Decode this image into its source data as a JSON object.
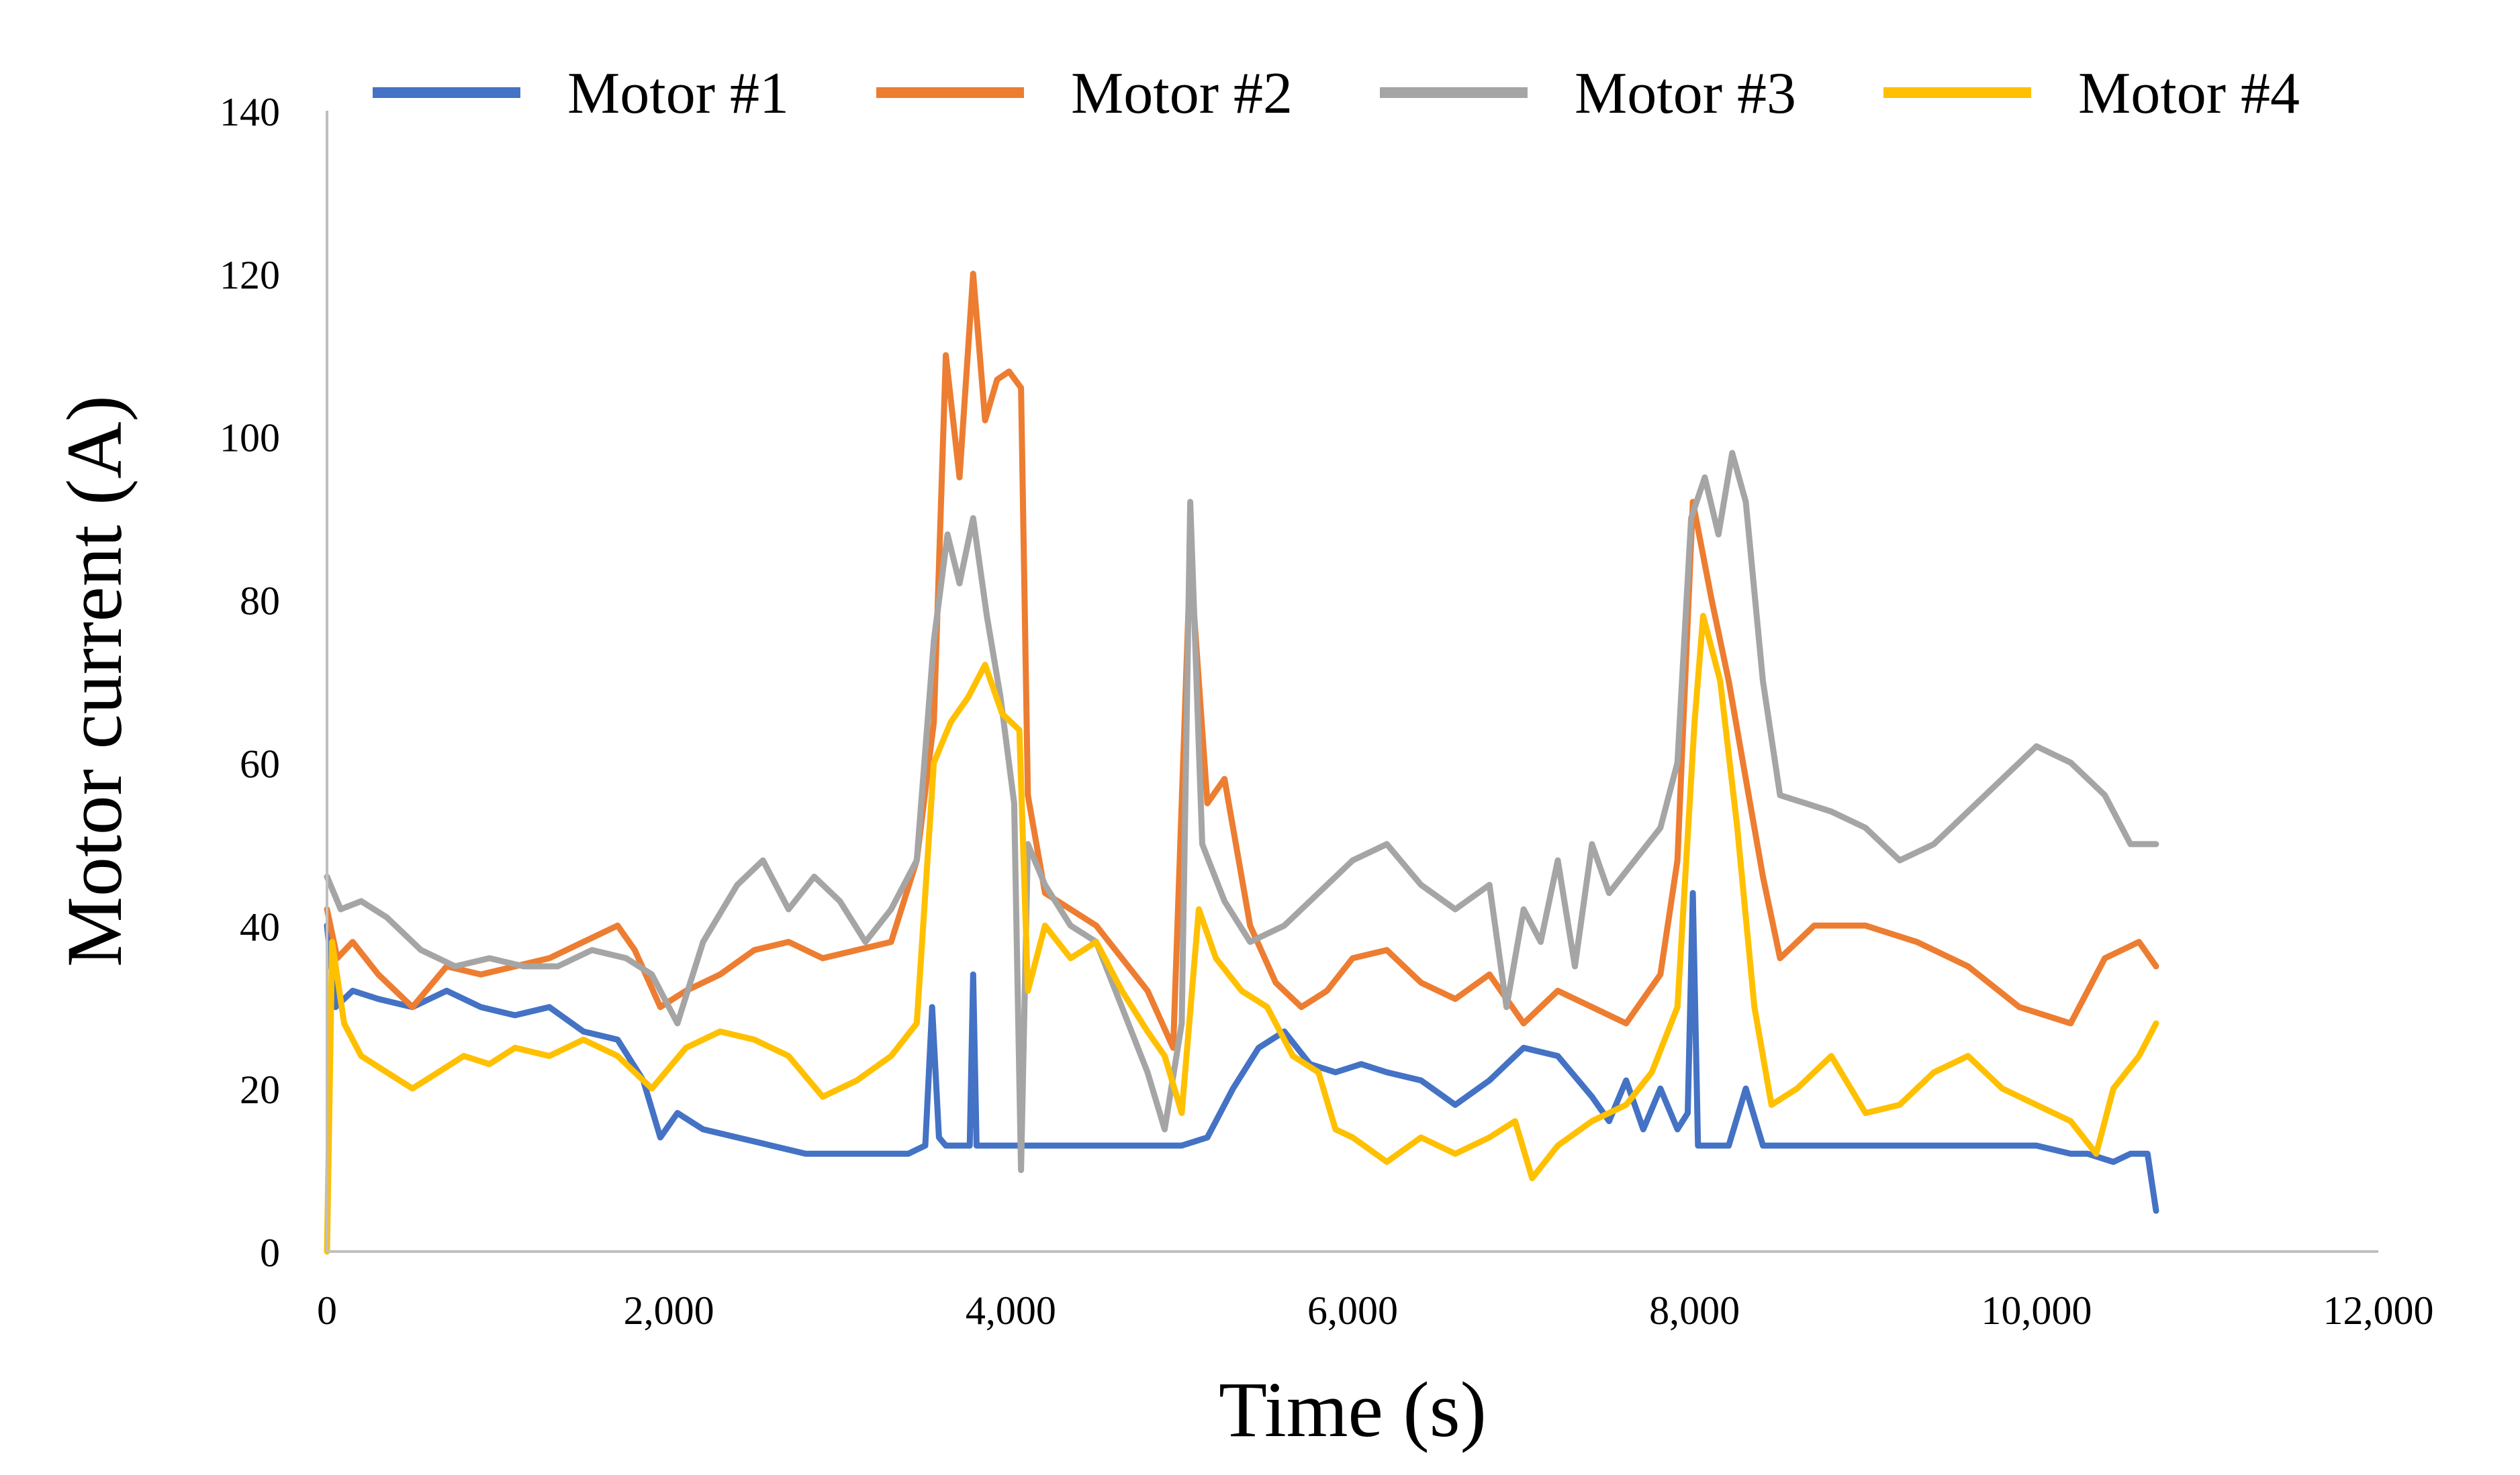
{
  "chart_data": {
    "type": "line",
    "title": "",
    "xlabel": "Time (s)",
    "ylabel": "Motor current (A)",
    "xlim": [
      0,
      12000
    ],
    "ylim": [
      0,
      140
    ],
    "xticks": [
      0,
      2000,
      4000,
      6000,
      8000,
      10000,
      12000
    ],
    "xtick_labels": [
      "0",
      "2,000",
      "4,000",
      "6,000",
      "8,000",
      "10,000",
      "12,000"
    ],
    "yticks": [
      0,
      20,
      40,
      60,
      80,
      100,
      120,
      140
    ],
    "ytick_labels": [
      "0",
      "20",
      "40",
      "60",
      "80",
      "100",
      "120",
      "140"
    ],
    "grid": false,
    "legend_position": "top",
    "series": [
      {
        "name": "Motor #1",
        "color": "#4472C4",
        "x": [
          0,
          50,
          150,
          300,
          500,
          700,
          900,
          1100,
          1300,
          1500,
          1700,
          1850,
          1950,
          2050,
          2200,
          2400,
          2600,
          2800,
          3000,
          3200,
          3400,
          3500,
          3540,
          3580,
          3620,
          3700,
          3760,
          3780,
          3800,
          3850,
          4000,
          4200,
          4400,
          4600,
          4800,
          5000,
          5150,
          5300,
          5450,
          5600,
          5750,
          5900,
          6050,
          6200,
          6400,
          6600,
          6800,
          7000,
          7200,
          7400,
          7500,
          7600,
          7700,
          7800,
          7900,
          7960,
          7990,
          8020,
          8100,
          8200,
          8300,
          8400,
          8500,
          8700,
          9000,
          9500,
          10000,
          10200,
          10300,
          10450,
          10550,
          10650,
          10700
        ],
        "values": [
          40,
          30,
          32,
          31,
          30,
          32,
          30,
          29,
          30,
          27,
          26,
          21,
          14,
          17,
          15,
          14,
          13,
          12,
          12,
          12,
          12,
          13,
          30,
          14,
          13,
          13,
          13,
          34,
          13,
          13,
          13,
          13,
          13,
          13,
          13,
          13,
          14,
          20,
          25,
          27,
          23,
          22,
          23,
          22,
          21,
          18,
          21,
          25,
          24,
          19,
          16,
          21,
          15,
          20,
          15,
          17,
          44,
          13,
          13,
          13,
          20,
          13,
          13,
          13,
          13,
          13,
          13,
          12,
          12,
          11,
          12,
          12,
          5
        ]
      },
      {
        "name": "Motor #2",
        "color": "#ED7D31",
        "x": [
          0,
          60,
          150,
          300,
          500,
          700,
          900,
          1100,
          1300,
          1500,
          1700,
          1800,
          1950,
          2100,
          2300,
          2500,
          2700,
          2900,
          3100,
          3300,
          3450,
          3550,
          3620,
          3700,
          3780,
          3850,
          3920,
          3990,
          4060,
          4100,
          4200,
          4350,
          4500,
          4650,
          4800,
          4950,
          5050,
          5150,
          5250,
          5400,
          5550,
          5700,
          5850,
          6000,
          6200,
          6400,
          6600,
          6800,
          7000,
          7200,
          7400,
          7600,
          7800,
          7900,
          7990,
          8100,
          8200,
          8300,
          8400,
          8500,
          8700,
          9000,
          9300,
          9600,
          9900,
          10200,
          10400,
          10600,
          10700
        ],
        "values": [
          42,
          36,
          38,
          34,
          30,
          35,
          34,
          35,
          36,
          38,
          40,
          37,
          30,
          32,
          34,
          37,
          38,
          36,
          37,
          38,
          48,
          65,
          110,
          95,
          120,
          102,
          107,
          108,
          106,
          56,
          44,
          42,
          40,
          36,
          32,
          25,
          85,
          55,
          58,
          40,
          33,
          30,
          32,
          36,
          37,
          33,
          31,
          34,
          28,
          32,
          30,
          28,
          34,
          48,
          92,
          80,
          70,
          58,
          46,
          36,
          40,
          40,
          38,
          35,
          30,
          28,
          36,
          38,
          35
        ]
      },
      {
        "name": "Motor #3",
        "color": "#A5A5A5",
        "x": [
          0,
          80,
          200,
          350,
          550,
          750,
          950,
          1150,
          1350,
          1550,
          1750,
          1900,
          2050,
          2200,
          2400,
          2550,
          2700,
          2850,
          3000,
          3150,
          3300,
          3450,
          3550,
          3630,
          3700,
          3780,
          3860,
          3940,
          4020,
          4060,
          4100,
          4200,
          4350,
          4500,
          4650,
          4800,
          4900,
          5000,
          5050,
          5120,
          5250,
          5400,
          5600,
          5800,
          6000,
          6200,
          6400,
          6600,
          6800,
          6900,
          7000,
          7100,
          7200,
          7300,
          7400,
          7500,
          7650,
          7800,
          7900,
          7980,
          8060,
          8140,
          8220,
          8300,
          8400,
          8500,
          8650,
          8800,
          9000,
          9200,
          9400,
          9600,
          9800,
          10000,
          10200,
          10400,
          10550,
          10700
        ],
        "values": [
          46,
          42,
          43,
          41,
          37,
          35,
          36,
          35,
          35,
          37,
          36,
          34,
          28,
          38,
          45,
          48,
          42,
          46,
          43,
          38,
          42,
          48,
          75,
          88,
          82,
          90,
          78,
          68,
          55,
          10,
          50,
          45,
          40,
          38,
          30,
          22,
          15,
          28,
          92,
          50,
          43,
          38,
          40,
          44,
          48,
          50,
          45,
          42,
          45,
          30,
          42,
          38,
          48,
          35,
          50,
          44,
          48,
          52,
          60,
          90,
          95,
          88,
          98,
          92,
          70,
          56,
          55,
          54,
          52,
          48,
          50,
          54,
          58,
          62,
          60,
          56,
          50,
          50
        ]
      },
      {
        "name": "Motor #4",
        "color": "#FFC000",
        "x": [
          0,
          30,
          100,
          200,
          350,
          500,
          650,
          800,
          950,
          1100,
          1300,
          1500,
          1700,
          1900,
          2100,
          2300,
          2500,
          2700,
          2900,
          3100,
          3300,
          3450,
          3550,
          3650,
          3750,
          3850,
          3950,
          4050,
          4100,
          4200,
          4350,
          4500,
          4650,
          4800,
          4900,
          5000,
          5100,
          5200,
          5350,
          5500,
          5650,
          5800,
          5900,
          6000,
          6200,
          6400,
          6600,
          6800,
          6950,
          7050,
          7200,
          7400,
          7600,
          7750,
          7900,
          8000,
          8050,
          8150,
          8250,
          8350,
          8450,
          8600,
          8800,
          9000,
          9200,
          9400,
          9600,
          9800,
          10000,
          10200,
          10350,
          10450,
          10600,
          10700
        ],
        "values": [
          0,
          38,
          28,
          24,
          22,
          20,
          22,
          24,
          23,
          25,
          24,
          26,
          24,
          20,
          25,
          27,
          26,
          24,
          19,
          21,
          24,
          28,
          60,
          65,
          68,
          72,
          66,
          64,
          32,
          40,
          36,
          38,
          32,
          27,
          24,
          17,
          42,
          36,
          32,
          30,
          24,
          22,
          15,
          14,
          11,
          14,
          12,
          14,
          16,
          9,
          13,
          16,
          18,
          22,
          30,
          65,
          78,
          70,
          52,
          30,
          18,
          20,
          24,
          17,
          18,
          22,
          24,
          20,
          18,
          16,
          12,
          20,
          24,
          28
        ]
      }
    ]
  }
}
